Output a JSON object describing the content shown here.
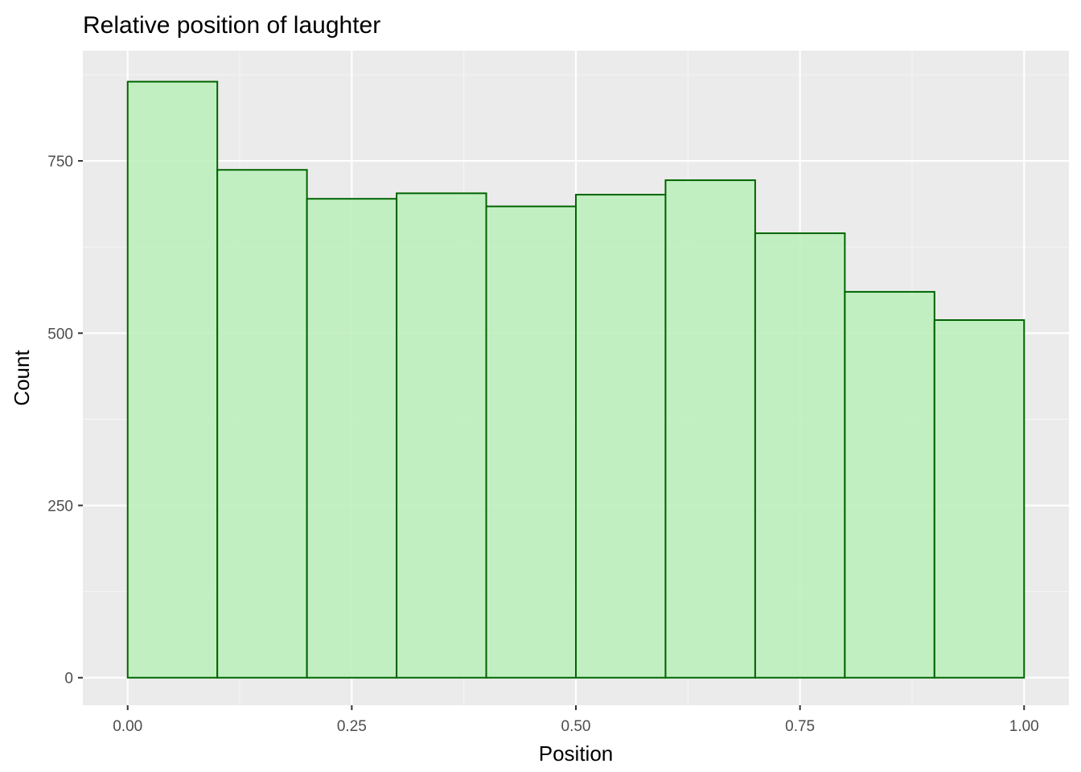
{
  "chart_data": {
    "type": "bar",
    "histogram": true,
    "title": "Relative position of laughter",
    "xlabel": "Position",
    "ylabel": "Count",
    "xlim": [
      -0.05,
      1.05
    ],
    "ylim": [
      -40,
      910
    ],
    "x_ticks": [
      0.0,
      0.25,
      0.5,
      0.75,
      1.0
    ],
    "x_tick_labels": [
      "0.00",
      "0.25",
      "0.50",
      "0.75",
      "1.00"
    ],
    "y_ticks": [
      0,
      250,
      500,
      750
    ],
    "y_tick_labels": [
      "0",
      "250",
      "500",
      "750"
    ],
    "bins": [
      {
        "start": 0.0,
        "end": 0.1,
        "value": 865
      },
      {
        "start": 0.1,
        "end": 0.2,
        "value": 737
      },
      {
        "start": 0.2,
        "end": 0.3,
        "value": 695
      },
      {
        "start": 0.3,
        "end": 0.4,
        "value": 703
      },
      {
        "start": 0.4,
        "end": 0.5,
        "value": 684
      },
      {
        "start": 0.5,
        "end": 0.6,
        "value": 701
      },
      {
        "start": 0.6,
        "end": 0.7,
        "value": 722
      },
      {
        "start": 0.7,
        "end": 0.8,
        "value": 645
      },
      {
        "start": 0.8,
        "end": 0.9,
        "value": 560
      },
      {
        "start": 0.9,
        "end": 1.0,
        "value": 519
      }
    ],
    "grid": true,
    "legend": "none",
    "colors": {
      "bar_fill": "#bef0bc",
      "bar_stroke": "#006400",
      "panel_background": "#ebebeb",
      "grid_major": "#ffffff",
      "grid_minor": "#f5f5f5"
    }
  }
}
